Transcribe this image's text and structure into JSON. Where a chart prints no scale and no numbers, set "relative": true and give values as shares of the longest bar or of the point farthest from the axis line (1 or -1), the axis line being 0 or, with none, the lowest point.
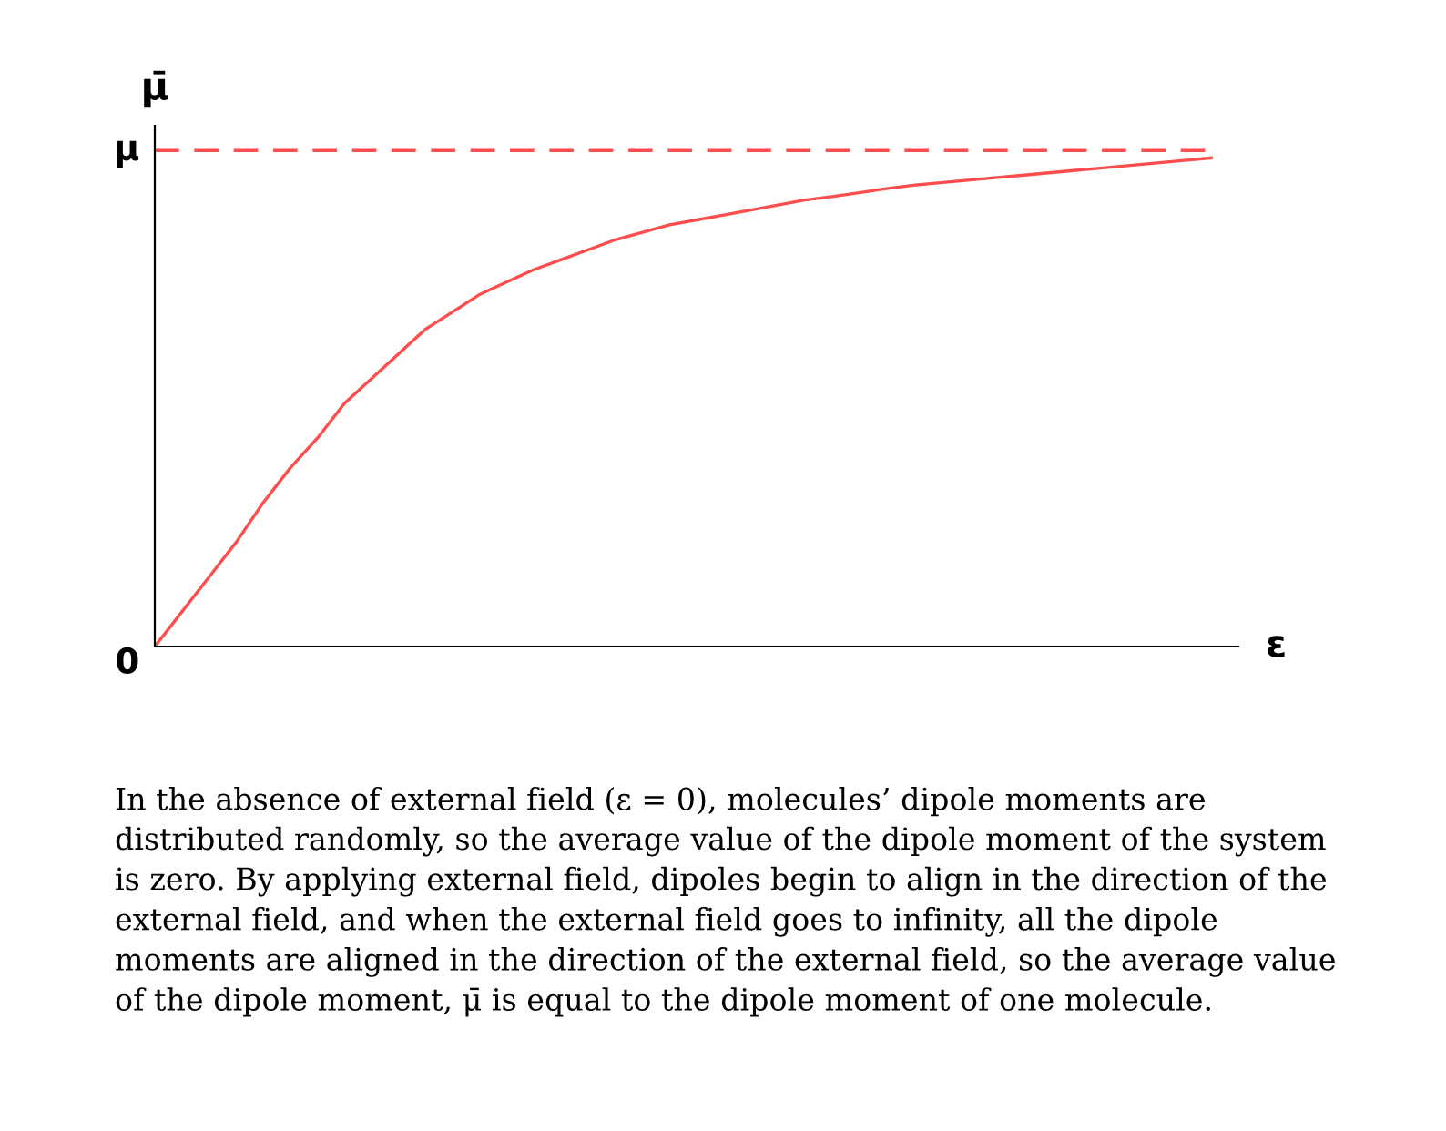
{
  "chart_data": {
    "type": "line",
    "xlabel": "ε",
    "ylabel": "μ̄",
    "relative": true,
    "categories": [
      null,
      null,
      null,
      null,
      null,
      null,
      null,
      null,
      null,
      null,
      null,
      null,
      null,
      null,
      null,
      null,
      null,
      null,
      null,
      null,
      null,
      null,
      null,
      null,
      null,
      null,
      null,
      null,
      null,
      null,
      null,
      null,
      null,
      null,
      null,
      null,
      null,
      null,
      null,
      null
    ],
    "series": [
      {
        "color": "#ff4d4d",
        "values": [
          0,
          0.07,
          0.14,
          0.21,
          0.29,
          0.36,
          0.42,
          0.49,
          0.54,
          0.59,
          0.64,
          0.675,
          0.71,
          0.735,
          0.76,
          0.78,
          0.8,
          0.82,
          0.835,
          0.85,
          0.86,
          0.87,
          0.88,
          0.89,
          0.9,
          0.907,
          0.915,
          0.923,
          0.93,
          0.935,
          0.94,
          0.945,
          0.95,
          0.955,
          0.96,
          0.965,
          0.97,
          0.975,
          0.98,
          0.985
        ]
      },
      {
        "color": "#ff4d4d",
        "line_style": "dashed",
        "values": [
          1,
          1,
          1,
          1,
          1,
          1,
          1,
          1,
          1,
          1,
          1,
          1,
          1,
          1,
          1,
          1,
          1,
          1,
          1,
          1,
          1,
          1,
          1,
          1,
          1,
          1,
          1,
          1,
          1,
          1,
          1,
          1,
          1,
          1,
          1,
          1,
          1,
          1,
          1,
          1
        ]
      }
    ],
    "grid": false,
    "legend": false,
    "marker": "none",
    "line_style": "solid",
    "annotations": [
      "μ",
      "0",
      "In the absence of external field (ε = 0), molecules’ dipole moments are distributed randomly, so the average value of the dipole moment of the system is zero. By applying external field, dipoles begin to align in the direction of the external field, and when the external field goes to infinity, all the dipole moments are aligned in the direction of the external field, so the average value of the dipole moment, μ̄ is equal to the dipole moment of one molecule."
    ]
  }
}
